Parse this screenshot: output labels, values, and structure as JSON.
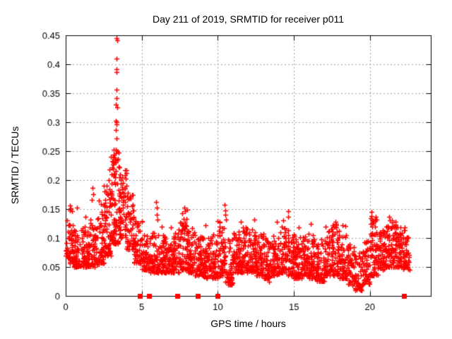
{
  "chart_data": {
    "type": "scatter",
    "title": "Day 211 of 2019, SRMTID for receiver p011",
    "xlabel": "GPS time / hours",
    "ylabel": "SRMTID / TECUs",
    "series_name": "SRMTID",
    "marker": "plus",
    "marker_color": "#ff0000",
    "frame_color": "#000000",
    "grid": "dotted",
    "grid_color": "#9c9c9c",
    "background": "#ffffff",
    "legend": "none",
    "xlim": [
      0,
      24
    ],
    "ylim": [
      0,
      0.45
    ],
    "xticks": {
      "values": [
        0,
        5,
        10,
        15,
        20
      ],
      "labels": [
        "0",
        "5",
        "10",
        "15",
        "20"
      ]
    },
    "yticks": {
      "values": [
        0,
        0.05,
        0.1,
        0.15,
        0.2,
        0.25,
        0.3,
        0.35,
        0.4,
        0.45
      ],
      "labels": [
        "0",
        "0.05",
        "0.1",
        "0.15",
        "0.2",
        "0.25",
        "0.3",
        "0.35",
        "0.4",
        "0.45"
      ]
    },
    "data_end_hour": 22.6,
    "envelope_bins": [
      [
        0.0,
        0.5,
        0.055,
        0.125,
        55
      ],
      [
        0.5,
        1.0,
        0.05,
        0.115,
        55
      ],
      [
        1.0,
        1.5,
        0.05,
        0.12,
        55
      ],
      [
        1.5,
        2.0,
        0.05,
        0.135,
        55
      ],
      [
        2.0,
        2.5,
        0.055,
        0.145,
        55
      ],
      [
        2.5,
        3.0,
        0.07,
        0.185,
        60
      ],
      [
        3.0,
        3.5,
        0.09,
        0.25,
        70
      ],
      [
        3.5,
        4.0,
        0.1,
        0.22,
        60
      ],
      [
        4.0,
        4.5,
        0.08,
        0.18,
        55
      ],
      [
        4.5,
        5.0,
        0.055,
        0.13,
        50
      ],
      [
        5.0,
        5.5,
        0.045,
        0.105,
        50
      ],
      [
        5.5,
        6.0,
        0.04,
        0.11,
        50
      ],
      [
        6.0,
        6.5,
        0.04,
        0.105,
        55
      ],
      [
        6.5,
        7.0,
        0.04,
        0.1,
        55
      ],
      [
        7.0,
        7.5,
        0.04,
        0.115,
        55
      ],
      [
        7.5,
        8.0,
        0.045,
        0.135,
        55
      ],
      [
        8.0,
        8.5,
        0.04,
        0.12,
        55
      ],
      [
        8.5,
        9.0,
        0.035,
        0.11,
        55
      ],
      [
        9.0,
        9.5,
        0.03,
        0.105,
        55
      ],
      [
        9.5,
        10.0,
        0.03,
        0.11,
        55
      ],
      [
        10.0,
        10.5,
        0.035,
        0.13,
        55
      ],
      [
        10.5,
        11.0,
        0.02,
        0.1,
        55
      ],
      [
        11.0,
        11.5,
        0.04,
        0.115,
        55
      ],
      [
        11.5,
        12.0,
        0.04,
        0.12,
        55
      ],
      [
        12.0,
        12.5,
        0.04,
        0.115,
        55
      ],
      [
        12.5,
        13.0,
        0.035,
        0.11,
        55
      ],
      [
        13.0,
        13.5,
        0.03,
        0.1,
        55
      ],
      [
        13.5,
        14.0,
        0.035,
        0.11,
        55
      ],
      [
        14.0,
        14.5,
        0.04,
        0.12,
        55
      ],
      [
        14.5,
        15.0,
        0.035,
        0.115,
        55
      ],
      [
        15.0,
        15.5,
        0.03,
        0.105,
        55
      ],
      [
        15.5,
        16.0,
        0.035,
        0.11,
        55
      ],
      [
        16.0,
        16.5,
        0.03,
        0.105,
        55
      ],
      [
        16.5,
        17.0,
        0.025,
        0.1,
        55
      ],
      [
        17.0,
        17.5,
        0.035,
        0.12,
        55
      ],
      [
        17.5,
        18.0,
        0.035,
        0.125,
        55
      ],
      [
        18.0,
        18.5,
        0.03,
        0.11,
        55
      ],
      [
        18.5,
        19.0,
        0.02,
        0.09,
        50
      ],
      [
        19.0,
        19.5,
        0.01,
        0.075,
        45
      ],
      [
        19.5,
        20.0,
        0.02,
        0.1,
        50
      ],
      [
        20.0,
        20.5,
        0.035,
        0.135,
        60
      ],
      [
        20.5,
        21.0,
        0.045,
        0.115,
        55
      ],
      [
        21.0,
        21.5,
        0.05,
        0.13,
        60
      ],
      [
        21.5,
        22.0,
        0.05,
        0.125,
        60
      ],
      [
        22.0,
        22.6,
        0.045,
        0.115,
        60
      ]
    ],
    "peak_points": [
      [
        3.33,
        0.445
      ],
      [
        3.37,
        0.442
      ],
      [
        3.34,
        0.41
      ],
      [
        3.33,
        0.392
      ],
      [
        3.36,
        0.386
      ],
      [
        3.33,
        0.356
      ],
      [
        3.35,
        0.342
      ],
      [
        3.31,
        0.33
      ],
      [
        3.37,
        0.326
      ],
      [
        3.3,
        0.302
      ],
      [
        3.35,
        0.3
      ],
      [
        3.33,
        0.296
      ],
      [
        3.3,
        0.286
      ],
      [
        3.36,
        0.272
      ],
      [
        3.3,
        0.252
      ],
      [
        3.39,
        0.25
      ],
      [
        3.46,
        0.248
      ],
      [
        3.43,
        0.236
      ],
      [
        3.3,
        0.23
      ],
      [
        3.52,
        0.222
      ],
      [
        3.28,
        0.216
      ],
      [
        3.56,
        0.21
      ],
      [
        3.25,
        0.205
      ],
      [
        3.62,
        0.2
      ],
      [
        3.2,
        0.196
      ],
      [
        3.15,
        0.252
      ],
      [
        3.1,
        0.232
      ],
      [
        3.05,
        0.222
      ],
      [
        3.0,
        0.21
      ],
      [
        2.95,
        0.24
      ],
      [
        2.9,
        0.218
      ],
      [
        2.85,
        0.2
      ],
      [
        2.7,
        0.19
      ],
      [
        2.75,
        0.176
      ],
      [
        2.62,
        0.166
      ],
      [
        2.5,
        0.19
      ],
      [
        2.55,
        0.18
      ],
      [
        2.2,
        0.165
      ],
      [
        2.32,
        0.158
      ],
      [
        1.75,
        0.186
      ],
      [
        1.82,
        0.176
      ],
      [
        1.7,
        0.166
      ],
      [
        1.3,
        0.136
      ],
      [
        0.75,
        0.152
      ],
      [
        0.3,
        0.156
      ],
      [
        0.34,
        0.151
      ],
      [
        0.26,
        0.148
      ],
      [
        0.42,
        0.146
      ],
      [
        0.1,
        0.13
      ],
      [
        4.0,
        0.19
      ],
      [
        4.1,
        0.178
      ],
      [
        4.2,
        0.168
      ],
      [
        4.35,
        0.155
      ],
      [
        5.95,
        0.162
      ],
      [
        5.97,
        0.152
      ],
      [
        6.0,
        0.14
      ],
      [
        6.02,
        0.132
      ],
      [
        6.3,
        0.12
      ],
      [
        6.9,
        0.118
      ],
      [
        7.68,
        0.143
      ],
      [
        7.8,
        0.152
      ],
      [
        7.85,
        0.146
      ],
      [
        8.0,
        0.149
      ],
      [
        9.2,
        0.122
      ],
      [
        10.45,
        0.157
      ],
      [
        10.47,
        0.147
      ],
      [
        10.5,
        0.14
      ],
      [
        10.52,
        0.132
      ],
      [
        11.5,
        0.128
      ],
      [
        12.4,
        0.132
      ],
      [
        13.9,
        0.128
      ],
      [
        14.6,
        0.146
      ],
      [
        14.62,
        0.137
      ],
      [
        14.3,
        0.13
      ],
      [
        15.3,
        0.118
      ],
      [
        16.1,
        0.124
      ],
      [
        17.1,
        0.12
      ],
      [
        17.75,
        0.128
      ],
      [
        17.78,
        0.122
      ],
      [
        18.2,
        0.122
      ],
      [
        18.4,
        0.121
      ],
      [
        20.1,
        0.145
      ],
      [
        20.12,
        0.138
      ],
      [
        20.15,
        0.131
      ],
      [
        20.05,
        0.125
      ],
      [
        20.4,
        0.136
      ],
      [
        21.25,
        0.136
      ],
      [
        21.3,
        0.131
      ],
      [
        21.7,
        0.128
      ],
      [
        22.3,
        0.118
      ]
    ],
    "low_points": [
      [
        19.3,
        0.012
      ],
      [
        19.38,
        0.016
      ],
      [
        19.45,
        0.01
      ],
      [
        19.2,
        0.02
      ],
      [
        18.85,
        0.018
      ],
      [
        19.05,
        0.014
      ],
      [
        19.6,
        0.022
      ],
      [
        10.75,
        0.02
      ],
      [
        10.8,
        0.025
      ],
      [
        13.35,
        0.024
      ],
      [
        16.85,
        0.026
      ]
    ],
    "zero_marker_hours": [
      4.89,
      5.48,
      7.32,
      8.68,
      9.97,
      22.24
    ],
    "prng_seed": 20190211
  }
}
